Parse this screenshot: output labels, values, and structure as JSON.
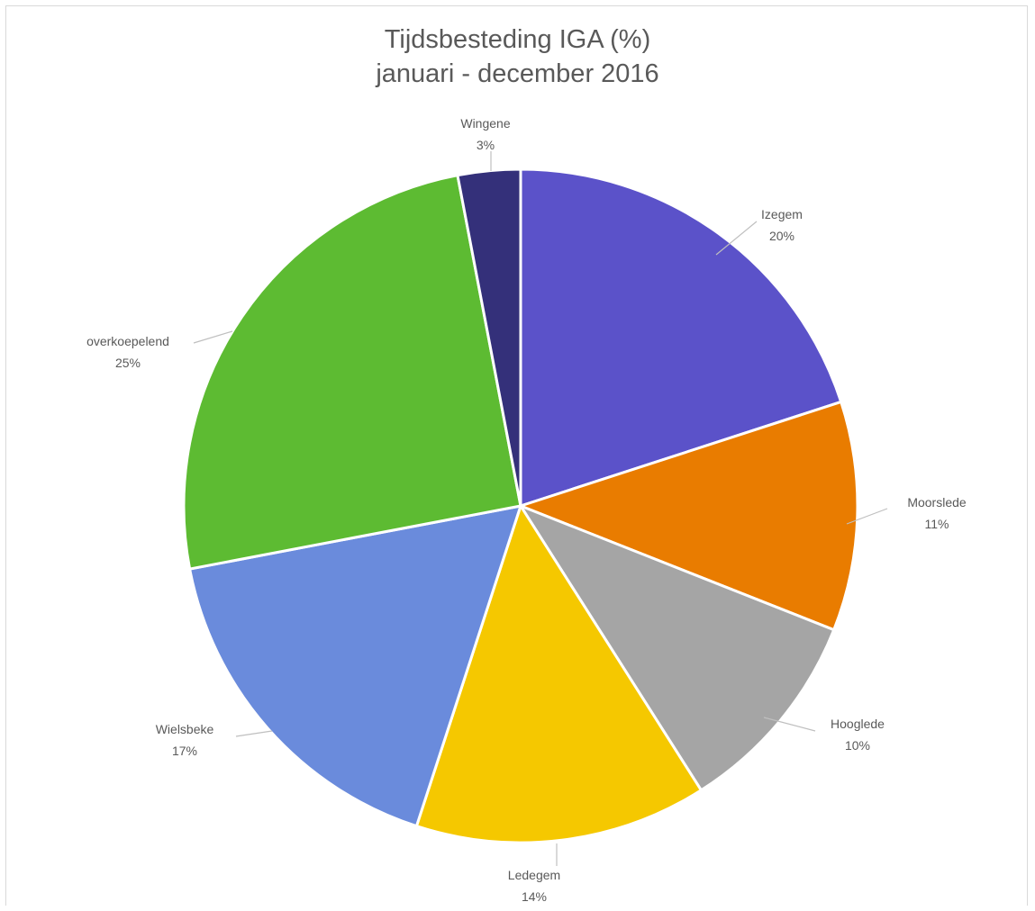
{
  "chart_data": {
    "type": "pie",
    "title": "Tijdsbesteding IGA (%)",
    "subtitle": "januari - december 2016",
    "slices": [
      {
        "name": "Izegem",
        "value": 20,
        "label": "20%",
        "color": "#5b52c9"
      },
      {
        "name": "Moorslede",
        "value": 11,
        "label": "11%",
        "color": "#e97c00"
      },
      {
        "name": "Hooglede",
        "value": 10,
        "label": "10%",
        "color": "#a5a5a5"
      },
      {
        "name": "Ledegem",
        "value": 14,
        "label": "14%",
        "color": "#f5c800"
      },
      {
        "name": "Wielsbeke",
        "value": 17,
        "label": "17%",
        "color": "#6a8bdc"
      },
      {
        "name": "overkoepelend",
        "value": 25,
        "label": "25%",
        "color": "#5dbb32"
      },
      {
        "name": "Wingene",
        "value": 3,
        "label": "3%",
        "color": "#34307a"
      }
    ],
    "start_angle": "12 o'clock",
    "direction": "clockwise",
    "legend": "none",
    "data_labels": "outside with leader lines"
  }
}
